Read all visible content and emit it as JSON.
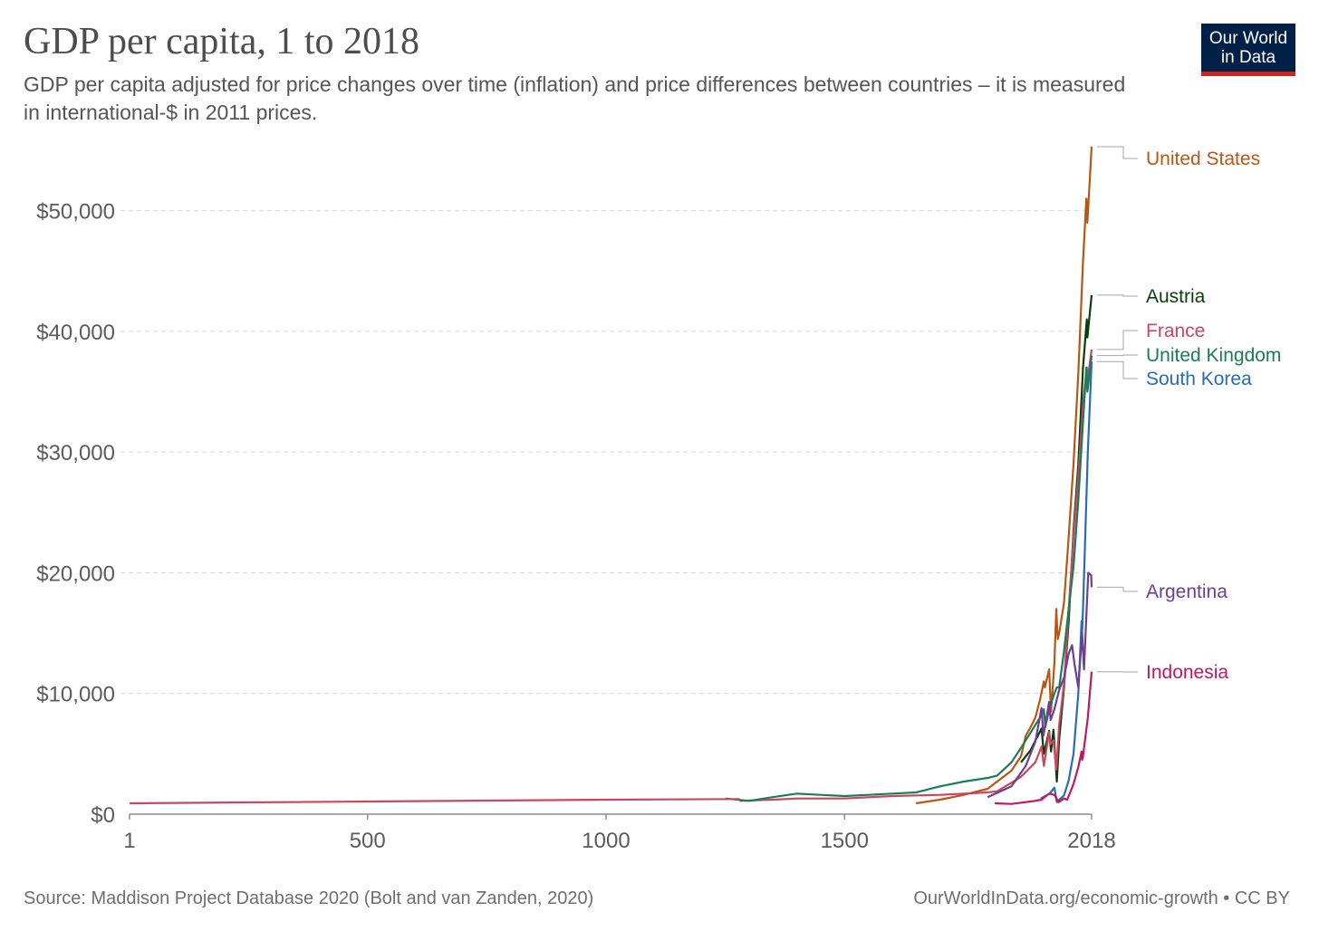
{
  "title": "GDP per capita, 1 to 2018",
  "subtitle": "GDP per capita adjusted for price changes over time (inflation) and price differences between countries – it is measured in international-$ in 2011 prices.",
  "logo": {
    "line1": "Our World",
    "line2": "in Data"
  },
  "footer": {
    "source": "Source: Maddison Project Database 2020 (Bolt and van Zanden, 2020)",
    "link": "OurWorldInData.org/economic-growth • CC BY"
  },
  "chart_data": {
    "type": "line",
    "xlim": [
      1,
      2018
    ],
    "ylim": [
      0,
      55000
    ],
    "x_ticks": [
      1,
      500,
      1000,
      1500,
      2018
    ],
    "x_tick_labels": [
      "1",
      "500",
      "1000",
      "1500",
      "2018"
    ],
    "y_ticks": [
      0,
      10000,
      20000,
      30000,
      40000,
      50000
    ],
    "y_tick_labels": [
      "$0",
      "$10,000",
      "$20,000",
      "$30,000",
      "$40,000",
      "$50,000"
    ],
    "grid": "horizontal dashed",
    "legend": "right, labels at line ends",
    "series": [
      {
        "name": "United States",
        "color": "#b85713",
        "points": [
          [
            1650,
            900
          ],
          [
            1700,
            1200
          ],
          [
            1750,
            1600
          ],
          [
            1800,
            2100
          ],
          [
            1820,
            2700
          ],
          [
            1850,
            3600
          ],
          [
            1870,
            4800
          ],
          [
            1880,
            6500
          ],
          [
            1890,
            7200
          ],
          [
            1900,
            8000
          ],
          [
            1910,
            9500
          ],
          [
            1918,
            11000
          ],
          [
            1920,
            10500
          ],
          [
            1929,
            12000
          ],
          [
            1933,
            8500
          ],
          [
            1940,
            12500
          ],
          [
            1944,
            17000
          ],
          [
            1947,
            14500
          ],
          [
            1950,
            15000
          ],
          [
            1960,
            17500
          ],
          [
            1970,
            23000
          ],
          [
            1980,
            29000
          ],
          [
            1990,
            36500
          ],
          [
            2000,
            45800
          ],
          [
            2007,
            51000
          ],
          [
            2009,
            49000
          ],
          [
            2018,
            55300
          ]
        ]
      },
      {
        "name": "Austria",
        "color": "#0b3d0b",
        "points": [
          [
            1870,
            4300
          ],
          [
            1890,
            5300
          ],
          [
            1913,
            7100
          ],
          [
            1918,
            5000
          ],
          [
            1929,
            6900
          ],
          [
            1933,
            5200
          ],
          [
            1938,
            7000
          ],
          [
            1945,
            2700
          ],
          [
            1950,
            6200
          ],
          [
            1960,
            10500
          ],
          [
            1970,
            16000
          ],
          [
            1980,
            23500
          ],
          [
            1990,
            29000
          ],
          [
            2000,
            37000
          ],
          [
            2008,
            41000
          ],
          [
            2009,
            39500
          ],
          [
            2018,
            43000
          ]
        ]
      },
      {
        "name": "France",
        "color": "#c9475f",
        "points": [
          [
            1280,
            1100
          ],
          [
            1350,
            1200
          ],
          [
            1400,
            1300
          ],
          [
            1500,
            1300
          ],
          [
            1600,
            1500
          ],
          [
            1700,
            1600
          ],
          [
            1800,
            1800
          ],
          [
            1820,
            1900
          ],
          [
            1850,
            2600
          ],
          [
            1870,
            3100
          ],
          [
            1900,
            4300
          ],
          [
            1913,
            5600
          ],
          [
            1918,
            4000
          ],
          [
            1929,
            6800
          ],
          [
            1932,
            5800
          ],
          [
            1938,
            6100
          ],
          [
            1944,
            3700
          ],
          [
            1950,
            7400
          ],
          [
            1960,
            10800
          ],
          [
            1970,
            17000
          ],
          [
            1980,
            23000
          ],
          [
            1990,
            28000
          ],
          [
            2000,
            34000
          ],
          [
            2008,
            37000
          ],
          [
            2009,
            35800
          ],
          [
            2018,
            38500
          ]
        ]
      },
      {
        "name": "United Kingdom",
        "color": "#1b7c55",
        "points": [
          [
            1250,
            1300
          ],
          [
            1300,
            1100
          ],
          [
            1348,
            1400
          ],
          [
            1400,
            1700
          ],
          [
            1450,
            1600
          ],
          [
            1500,
            1500
          ],
          [
            1550,
            1600
          ],
          [
            1600,
            1700
          ],
          [
            1650,
            1800
          ],
          [
            1700,
            2300
          ],
          [
            1750,
            2700
          ],
          [
            1800,
            3000
          ],
          [
            1820,
            3200
          ],
          [
            1850,
            4300
          ],
          [
            1870,
            5500
          ],
          [
            1900,
            7400
          ],
          [
            1913,
            8200
          ],
          [
            1918,
            8700
          ],
          [
            1921,
            7200
          ],
          [
            1929,
            8700
          ],
          [
            1940,
            10000
          ],
          [
            1945,
            10500
          ],
          [
            1950,
            10500
          ],
          [
            1960,
            13500
          ],
          [
            1970,
            17000
          ],
          [
            1980,
            20500
          ],
          [
            1990,
            26000
          ],
          [
            2000,
            32500
          ],
          [
            2007,
            37000
          ],
          [
            2009,
            35000
          ],
          [
            2018,
            38000
          ]
        ]
      },
      {
        "name": "South Korea",
        "color": "#286bbb",
        "points": [
          [
            1911,
            1300
          ],
          [
            1930,
            1700
          ],
          [
            1940,
            2200
          ],
          [
            1945,
            1000
          ],
          [
            1950,
            1200
          ],
          [
            1953,
            1300
          ],
          [
            1960,
            1550
          ],
          [
            1970,
            2800
          ],
          [
            1980,
            5000
          ],
          [
            1990,
            10000
          ],
          [
            1997,
            16000
          ],
          [
            1998,
            15000
          ],
          [
            2000,
            17000
          ],
          [
            2010,
            30000
          ],
          [
            2018,
            37500
          ]
        ]
      },
      {
        "name": "Argentina",
        "color": "#6d3e91",
        "points": [
          [
            1800,
            1400
          ],
          [
            1850,
            2300
          ],
          [
            1880,
            4000
          ],
          [
            1900,
            6000
          ],
          [
            1913,
            8800
          ],
          [
            1917,
            6500
          ],
          [
            1929,
            9300
          ],
          [
            1932,
            7800
          ],
          [
            1940,
            8700
          ],
          [
            1950,
            10300
          ],
          [
            1960,
            11300
          ],
          [
            1970,
            13300
          ],
          [
            1977,
            14000
          ],
          [
            1982,
            12500
          ],
          [
            1990,
            10500
          ],
          [
            1998,
            15000
          ],
          [
            2002,
            12000
          ],
          [
            2011,
            20000
          ],
          [
            2017,
            19800
          ],
          [
            2018,
            18800
          ]
        ]
      },
      {
        "name": "Indonesia",
        "color": "#c0185f",
        "points": [
          [
            1815,
            900
          ],
          [
            1850,
            850
          ],
          [
            1880,
            1000
          ],
          [
            1900,
            1100
          ],
          [
            1913,
            1200
          ],
          [
            1929,
            1700
          ],
          [
            1940,
            1600
          ],
          [
            1949,
            1000
          ],
          [
            1960,
            1300
          ],
          [
            1967,
            1200
          ],
          [
            1970,
            1500
          ],
          [
            1980,
            2500
          ],
          [
            1990,
            3900
          ],
          [
            1997,
            5200
          ],
          [
            1998,
            4500
          ],
          [
            2000,
            4800
          ],
          [
            2010,
            8000
          ],
          [
            2018,
            11800
          ]
        ]
      },
      {
        "name": "",
        "color": "#c9475f",
        "points": [
          [
            1,
            900
          ],
          [
            500,
            1050
          ],
          [
            1000,
            1200
          ],
          [
            1280,
            1250
          ]
        ]
      }
    ]
  }
}
